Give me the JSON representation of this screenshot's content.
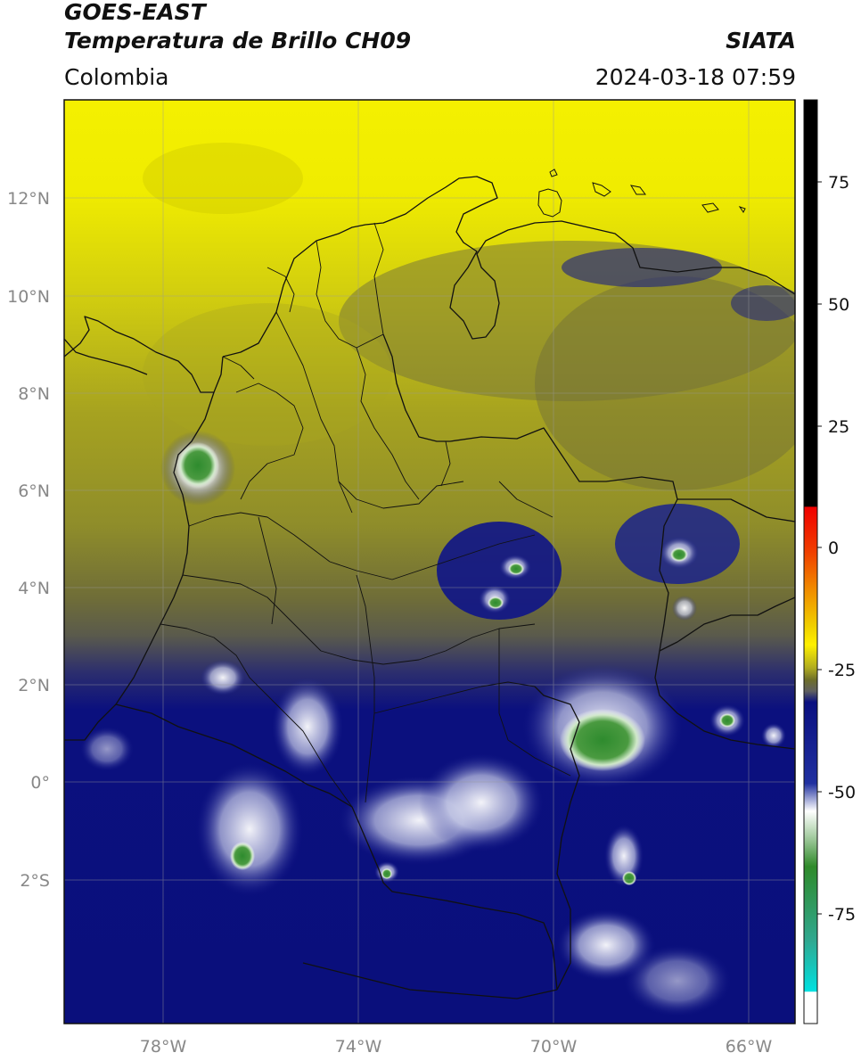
{
  "header": {
    "title_line1": "GOES-EAST",
    "title_line2": "Temperatura de Brillo CH09",
    "region": "Colombia",
    "agency": "SIATA",
    "timestamp": "2024-03-18 07:59"
  },
  "map": {
    "lon_ticks": [
      "78°W",
      "74°W",
      "70°W",
      "66°W"
    ],
    "lat_ticks": [
      "12°N",
      "10°N",
      "8°N",
      "6°N",
      "4°N",
      "2°N",
      "0°",
      "2°S"
    ],
    "gridlines": true
  },
  "colorbar": {
    "ticks": [
      "75",
      "50",
      "25",
      "0",
      "-25",
      "-50",
      "-75"
    ],
    "colors": {
      "warm_black": "#000000",
      "red": "#f00000",
      "orange": "#f08c00",
      "yellow": "#fff000",
      "olive": "#6e6e2a",
      "gray": "#606060",
      "navy": "#0a1080",
      "white": "#ffffff",
      "green": "#2f8a2a",
      "cyan": "#00e0e0"
    }
  }
}
